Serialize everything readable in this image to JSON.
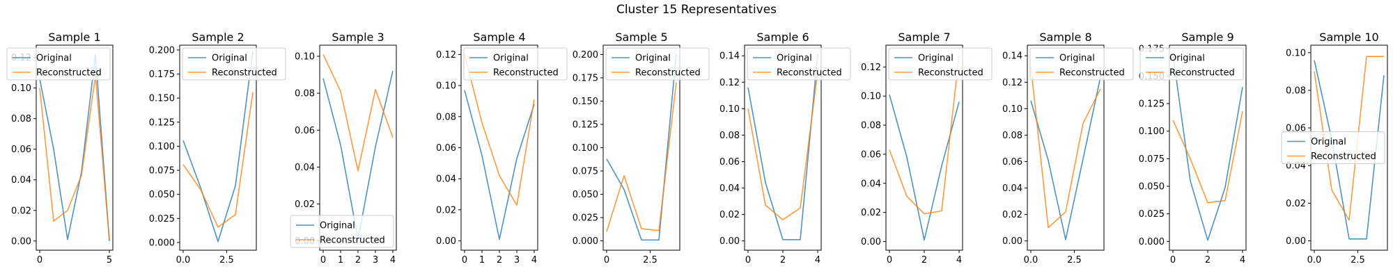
{
  "figure": {
    "suptitle": "Cluster 15 Representatives"
  },
  "colors": {
    "original": "#1f77b4",
    "reconstructed": "#ff7f0e"
  },
  "chart_data": [
    {
      "type": "line",
      "title": "Sample 1",
      "x": [
        0,
        1,
        2,
        3,
        4,
        5
      ],
      "xlim": [
        -0.25,
        5.25
      ],
      "ylim": [
        -0.006,
        0.128
      ],
      "xticks": [
        {
          "v": 0,
          "label": "0"
        },
        {
          "v": 5,
          "label": "5"
        }
      ],
      "yticks": [
        {
          "v": 0,
          "label": "0.00"
        },
        {
          "v": 0.02,
          "label": "0.02"
        },
        {
          "v": 0.04,
          "label": "0.04"
        },
        {
          "v": 0.06,
          "label": "0.06"
        },
        {
          "v": 0.08,
          "label": "0.08"
        },
        {
          "v": 0.1,
          "label": "0.10"
        },
        {
          "v": 0.12,
          "label": "0.12"
        }
      ],
      "series": [
        {
          "name": "Original",
          "values": [
            0.106,
            0.06,
            0.001,
            0.045,
            0.122,
            0.0
          ]
        },
        {
          "name": "Reconstructed",
          "values": [
            0.1,
            0.013,
            0.02,
            0.043,
            0.108,
            0.001
          ]
        }
      ],
      "legend": "top-right"
    },
    {
      "type": "line",
      "title": "Sample 2",
      "x": [
        0,
        1,
        2,
        3,
        4
      ],
      "xlim": [
        -0.2,
        4.2
      ],
      "ylim": [
        -0.008,
        0.205
      ],
      "xticks": [
        {
          "v": 0,
          "label": "0.0"
        },
        {
          "v": 2.5,
          "label": "2.5"
        }
      ],
      "yticks": [
        {
          "v": 0,
          "label": "0.000"
        },
        {
          "v": 0.025,
          "label": "0.025"
        },
        {
          "v": 0.05,
          "label": "0.050"
        },
        {
          "v": 0.075,
          "label": "0.075"
        },
        {
          "v": 0.1,
          "label": "0.100"
        },
        {
          "v": 0.125,
          "label": "0.125"
        },
        {
          "v": 0.15,
          "label": "0.150"
        },
        {
          "v": 0.175,
          "label": "0.175"
        },
        {
          "v": 0.2,
          "label": "0.200"
        }
      ],
      "series": [
        {
          "name": "Original",
          "values": [
            0.106,
            0.057,
            0.001,
            0.059,
            0.199
          ]
        },
        {
          "name": "Reconstructed",
          "values": [
            0.081,
            0.055,
            0.016,
            0.029,
            0.156
          ]
        }
      ],
      "legend": "top-left"
    },
    {
      "type": "line",
      "title": "Sample 3",
      "x": [
        0,
        1,
        2,
        3,
        4
      ],
      "xlim": [
        -0.2,
        4.2
      ],
      "ylim": [
        -0.005,
        0.106
      ],
      "xticks": [
        {
          "v": 0,
          "label": "0"
        },
        {
          "v": 1,
          "label": "1"
        },
        {
          "v": 2,
          "label": "2"
        },
        {
          "v": 3,
          "label": "3"
        },
        {
          "v": 4,
          "label": "4"
        }
      ],
      "yticks": [
        {
          "v": 0,
          "label": "0.00"
        },
        {
          "v": 0.02,
          "label": "0.02"
        },
        {
          "v": 0.04,
          "label": "0.04"
        },
        {
          "v": 0.06,
          "label": "0.06"
        },
        {
          "v": 0.08,
          "label": "0.08"
        },
        {
          "v": 0.1,
          "label": "0.10"
        }
      ],
      "series": [
        {
          "name": "Original",
          "values": [
            0.088,
            0.052,
            0.001,
            0.051,
            0.092
          ]
        },
        {
          "name": "Reconstructed",
          "values": [
            0.101,
            0.081,
            0.038,
            0.082,
            0.056
          ]
        }
      ],
      "legend": "bottom-right"
    },
    {
      "type": "line",
      "title": "Sample 4",
      "x": [
        0,
        1,
        2,
        3,
        4
      ],
      "xlim": [
        -0.2,
        4.2
      ],
      "ylim": [
        -0.006,
        0.126
      ],
      "xticks": [
        {
          "v": 0,
          "label": "0"
        },
        {
          "v": 1,
          "label": "1"
        },
        {
          "v": 2,
          "label": "2"
        },
        {
          "v": 3,
          "label": "3"
        },
        {
          "v": 4,
          "label": "4"
        }
      ],
      "yticks": [
        {
          "v": 0,
          "label": "0.00"
        },
        {
          "v": 0.02,
          "label": "0.02"
        },
        {
          "v": 0.04,
          "label": "0.04"
        },
        {
          "v": 0.06,
          "label": "0.06"
        },
        {
          "v": 0.08,
          "label": "0.08"
        },
        {
          "v": 0.1,
          "label": "0.10"
        },
        {
          "v": 0.12,
          "label": "0.12"
        }
      ],
      "series": [
        {
          "name": "Original",
          "values": [
            0.097,
            0.055,
            0.001,
            0.053,
            0.088
          ]
        },
        {
          "name": "Reconstructed",
          "values": [
            0.12,
            0.076,
            0.042,
            0.023,
            0.091
          ]
        }
      ],
      "legend": "top-left"
    },
    {
      "type": "line",
      "title": "Sample 5",
      "x": [
        0,
        1,
        2,
        3,
        4
      ],
      "xlim": [
        -0.2,
        4.2
      ],
      "ylim": [
        -0.01,
        0.21
      ],
      "xticks": [
        {
          "v": 0,
          "label": "0"
        },
        {
          "v": 2.5,
          "label": "2.5"
        }
      ],
      "yticks": [
        {
          "v": 0,
          "label": "0.000"
        },
        {
          "v": 0.025,
          "label": "0.025"
        },
        {
          "v": 0.05,
          "label": "0.050"
        },
        {
          "v": 0.075,
          "label": "0.075"
        },
        {
          "v": 0.1,
          "label": "0.100"
        },
        {
          "v": 0.125,
          "label": "0.125"
        },
        {
          "v": 0.15,
          "label": "0.150"
        },
        {
          "v": 0.175,
          "label": "0.175"
        },
        {
          "v": 0.2,
          "label": "0.200"
        }
      ],
      "series": [
        {
          "name": "Original",
          "values": [
            0.088,
            0.055,
            0.001,
            0.001,
            0.201
          ]
        },
        {
          "name": "Reconstructed",
          "values": [
            0.01,
            0.07,
            0.013,
            0.011,
            0.17
          ]
        }
      ],
      "legend": "top-left"
    },
    {
      "type": "line",
      "title": "Sample 6",
      "x": [
        0,
        1,
        2,
        3,
        4
      ],
      "xlim": [
        -0.2,
        4.2
      ],
      "ylim": [
        -0.007,
        0.148
      ],
      "xticks": [
        {
          "v": 0,
          "label": "0"
        },
        {
          "v": 2,
          "label": "2"
        },
        {
          "v": 4,
          "label": "4"
        }
      ],
      "yticks": [
        {
          "v": 0,
          "label": "0.00"
        },
        {
          "v": 0.02,
          "label": "0.02"
        },
        {
          "v": 0.04,
          "label": "0.04"
        },
        {
          "v": 0.06,
          "label": "0.06"
        },
        {
          "v": 0.08,
          "label": "0.08"
        },
        {
          "v": 0.1,
          "label": "0.10"
        },
        {
          "v": 0.12,
          "label": "0.12"
        },
        {
          "v": 0.14,
          "label": "0.14"
        }
      ],
      "series": [
        {
          "name": "Original",
          "values": [
            0.116,
            0.044,
            0.001,
            0.001,
            0.141
          ]
        },
        {
          "name": "Reconstructed",
          "values": [
            0.1,
            0.027,
            0.016,
            0.025,
            0.128
          ]
        }
      ],
      "legend": "top-left"
    },
    {
      "type": "line",
      "title": "Sample 7",
      "x": [
        0,
        1,
        2,
        3,
        4
      ],
      "xlim": [
        -0.2,
        4.2
      ],
      "ylim": [
        -0.006,
        0.135
      ],
      "xticks": [
        {
          "v": 0,
          "label": "0"
        },
        {
          "v": 2,
          "label": "2"
        },
        {
          "v": 4,
          "label": "4"
        }
      ],
      "yticks": [
        {
          "v": 0,
          "label": "0.00"
        },
        {
          "v": 0.02,
          "label": "0.02"
        },
        {
          "v": 0.04,
          "label": "0.04"
        },
        {
          "v": 0.06,
          "label": "0.06"
        },
        {
          "v": 0.08,
          "label": "0.08"
        },
        {
          "v": 0.1,
          "label": "0.10"
        },
        {
          "v": 0.12,
          "label": "0.12"
        }
      ],
      "series": [
        {
          "name": "Original",
          "values": [
            0.101,
            0.058,
            0.001,
            0.052,
            0.096
          ]
        },
        {
          "name": "Reconstructed",
          "values": [
            0.063,
            0.031,
            0.019,
            0.021,
            0.128
          ]
        }
      ],
      "legend": "top-left"
    },
    {
      "type": "line",
      "title": "Sample 8",
      "x": [
        0,
        1,
        2,
        3,
        4
      ],
      "xlim": [
        -0.2,
        4.2
      ],
      "ylim": [
        -0.007,
        0.148
      ],
      "xticks": [
        {
          "v": 0,
          "label": "0.0"
        },
        {
          "v": 2.5,
          "label": "2.5"
        }
      ],
      "yticks": [
        {
          "v": 0,
          "label": "0.00"
        },
        {
          "v": 0.02,
          "label": "0.02"
        },
        {
          "v": 0.04,
          "label": "0.04"
        },
        {
          "v": 0.06,
          "label": "0.06"
        },
        {
          "v": 0.08,
          "label": "0.08"
        },
        {
          "v": 0.1,
          "label": "0.10"
        },
        {
          "v": 0.12,
          "label": "0.12"
        },
        {
          "v": 0.14,
          "label": "0.14"
        }
      ],
      "series": [
        {
          "name": "Original",
          "values": [
            0.106,
            0.061,
            0.001,
            0.062,
            0.124
          ]
        },
        {
          "name": "Reconstructed",
          "values": [
            0.132,
            0.01,
            0.022,
            0.089,
            0.115
          ]
        }
      ],
      "legend": "top-left"
    },
    {
      "type": "line",
      "title": "Sample 9",
      "x": [
        0,
        1,
        2,
        3,
        4
      ],
      "xlim": [
        -0.2,
        4.2
      ],
      "ylim": [
        -0.008,
        0.178
      ],
      "xticks": [
        {
          "v": 0,
          "label": "0"
        },
        {
          "v": 2,
          "label": "2"
        },
        {
          "v": 4,
          "label": "4"
        }
      ],
      "yticks": [
        {
          "v": 0,
          "label": "0.000"
        },
        {
          "v": 0.025,
          "label": "0.025"
        },
        {
          "v": 0.05,
          "label": "0.050"
        },
        {
          "v": 0.075,
          "label": "0.075"
        },
        {
          "v": 0.1,
          "label": "0.100"
        },
        {
          "v": 0.125,
          "label": "0.125"
        },
        {
          "v": 0.15,
          "label": "0.150"
        },
        {
          "v": 0.175,
          "label": "0.175"
        }
      ],
      "series": [
        {
          "name": "Original",
          "values": [
            0.17,
            0.055,
            0.001,
            0.049,
            0.14
          ]
        },
        {
          "name": "Reconstructed",
          "values": [
            0.11,
            0.075,
            0.035,
            0.037,
            0.118
          ]
        }
      ],
      "legend": "top-right"
    },
    {
      "type": "line",
      "title": "Sample 10",
      "x": [
        0,
        1,
        2,
        3,
        4
      ],
      "xlim": [
        -0.2,
        4.2
      ],
      "ylim": [
        -0.005,
        0.104
      ],
      "xticks": [
        {
          "v": 0,
          "label": "0.0"
        },
        {
          "v": 2.5,
          "label": "2.5"
        }
      ],
      "yticks": [
        {
          "v": 0,
          "label": "0.00"
        },
        {
          "v": 0.02,
          "label": "0.02"
        },
        {
          "v": 0.04,
          "label": "0.04"
        },
        {
          "v": 0.06,
          "label": "0.06"
        },
        {
          "v": 0.08,
          "label": "0.08"
        },
        {
          "v": 0.1,
          "label": "0.10"
        }
      ],
      "series": [
        {
          "name": "Original",
          "values": [
            0.096,
            0.054,
            0.001,
            0.001,
            0.088
          ]
        },
        {
          "name": "Reconstructed",
          "values": [
            0.09,
            0.027,
            0.011,
            0.098,
            0.098
          ]
        }
      ],
      "legend": "center-right"
    }
  ]
}
